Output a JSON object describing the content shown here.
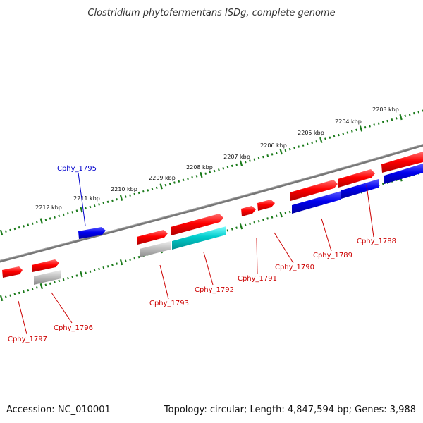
{
  "title": "Clostridium phytofermentans ISDg, complete genome",
  "footer": {
    "accession": "Accession: NC_010001",
    "stats": "Topology: circular; Length: 4,847,594 bp; Genes: 3,988"
  },
  "colors": {
    "backbone": "#888888",
    "ruler": "#1a7a1a",
    "forward_gene": "#ff0000",
    "reverse_gene": "#0000ff",
    "rna_gene": "#00c8c8",
    "pseudo_gene": "#bbbbbb",
    "label_red": "#cc0000",
    "label_blue": "#0000cc"
  },
  "kbp_ticks": [
    "2203 kbp",
    "2204 kbp",
    "2205 kbp",
    "2206 kbp",
    "2207 kbp",
    "2208 kbp",
    "2209 kbp",
    "2210 kbp",
    "2211 kbp",
    "2212 kbp"
  ],
  "gene_labels": [
    {
      "name": "Cphy_1788",
      "color": "red"
    },
    {
      "name": "Cphy_1789",
      "color": "red"
    },
    {
      "name": "Cphy_1790",
      "color": "red"
    },
    {
      "name": "Cphy_1791",
      "color": "red"
    },
    {
      "name": "Cphy_1792",
      "color": "red"
    },
    {
      "name": "Cphy_1793",
      "color": "red"
    },
    {
      "name": "Cphy_1795",
      "color": "blue"
    },
    {
      "name": "Cphy_1796",
      "color": "red"
    },
    {
      "name": "Cphy_1797",
      "color": "red"
    }
  ]
}
